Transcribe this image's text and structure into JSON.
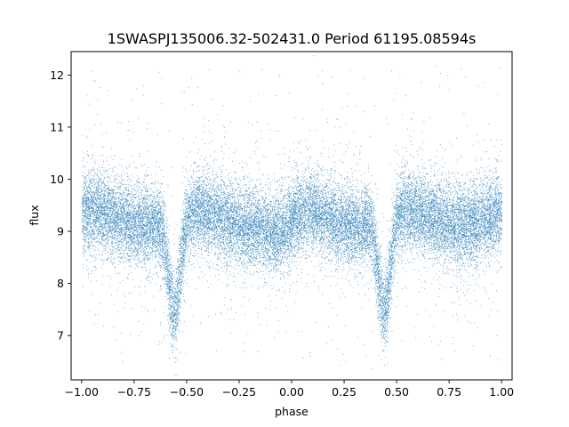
{
  "chart_data": {
    "type": "scatter",
    "title": "1SWASPJ135006.32-502431.0 Period 61195.08594s",
    "xlabel": "phase",
    "ylabel": "flux",
    "xlim": [
      -1.05,
      1.05
    ],
    "ylim": [
      6.15,
      12.45
    ],
    "xticks": [
      -1.0,
      -0.75,
      -0.5,
      -0.25,
      0.0,
      0.25,
      0.5,
      0.75,
      1.0
    ],
    "xtick_labels": [
      "−1.00",
      "−0.75",
      "−0.50",
      "−0.25",
      "0.00",
      "0.25",
      "0.50",
      "0.75",
      "1.00"
    ],
    "yticks": [
      7,
      8,
      9,
      10,
      11,
      12
    ],
    "ytick_labels": [
      "7",
      "8",
      "9",
      "10",
      "11",
      "12"
    ],
    "grid": false,
    "legend": "none",
    "marker_color": "#1f77b4",
    "series": [
      {
        "x_range": [
          -1.0,
          1.0
        ],
        "baseline_flux": 9.2,
        "scatter_sigma": 0.38,
        "maximum_flux": 9.4,
        "maximum_phases": [
          -0.9,
          0.05,
          0.8
        ],
        "primary_eclipse_phases": [
          -0.56,
          0.44
        ],
        "eclipse_min_flux": 7.4,
        "secondary_eclipse_phase": -0.06,
        "secondary_eclipse_flux": 8.9,
        "outlier_range": [
          6.4,
          12.2
        ],
        "approx_points": 26000
      }
    ]
  }
}
